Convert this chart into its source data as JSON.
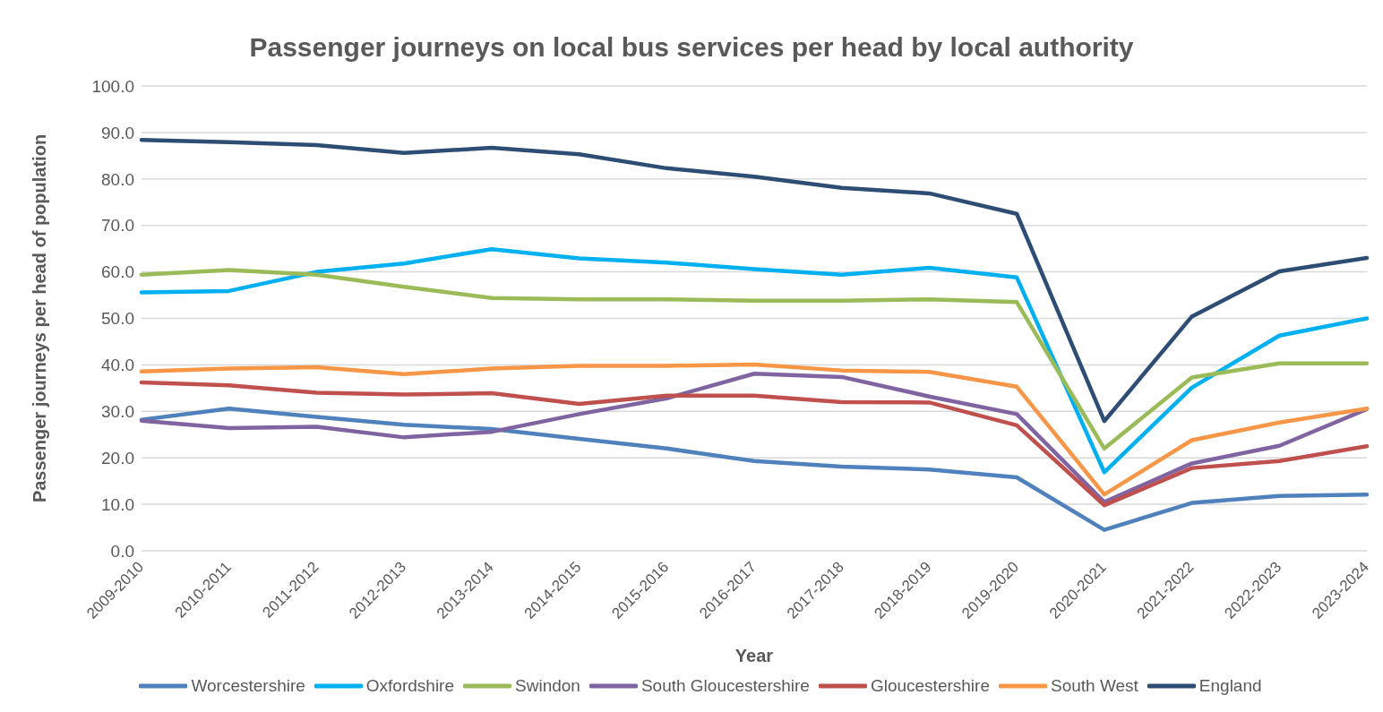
{
  "chart_data": {
    "type": "line",
    "title": "Passenger journeys on local bus services per head by local authority",
    "xlabel": "Year",
    "ylabel": "Passenger journeys per head of population",
    "categories": [
      "2009-2010",
      "2010-2011",
      "2011-2012",
      "2012-2013",
      "2013-2014",
      "2014-2015",
      "2015-2016",
      "2016-2017",
      "2017-2018",
      "2018-2019",
      "2019-2020",
      "2020-2021",
      "2021-2022",
      "2022-2023",
      "2023-2024"
    ],
    "series": [
      {
        "name": "Worcestershire",
        "color": "#4f81bd",
        "values": [
          28.2,
          30.6,
          28.8,
          27.1,
          26.2,
          24.1,
          22.0,
          19.3,
          18.1,
          17.5,
          15.8,
          4.5,
          10.3,
          11.8,
          12.1
        ]
      },
      {
        "name": "Oxfordshire",
        "color": "#00b0f0",
        "values": [
          55.6,
          55.9,
          60.0,
          61.8,
          64.9,
          62.9,
          62.0,
          60.6,
          59.4,
          60.9,
          58.8,
          16.9,
          35.1,
          46.3,
          50.0
        ]
      },
      {
        "name": "Swindon",
        "color": "#9bbb59",
        "values": [
          59.4,
          60.4,
          59.4,
          56.8,
          54.4,
          54.1,
          54.1,
          53.8,
          53.8,
          54.1,
          53.5,
          22.0,
          37.3,
          40.3,
          40.3
        ]
      },
      {
        "name": "South Gloucestershire",
        "color": "#8064a2",
        "values": [
          28.0,
          26.4,
          26.7,
          24.4,
          25.6,
          29.4,
          32.8,
          38.1,
          37.4,
          33.2,
          29.4,
          10.5,
          18.8,
          22.6,
          30.5
        ]
      },
      {
        "name": "Gloucestershire",
        "color": "#c0504d",
        "values": [
          36.2,
          35.6,
          34.0,
          33.6,
          33.9,
          31.6,
          33.4,
          33.4,
          32.0,
          31.9,
          27.0,
          9.8,
          17.8,
          19.3,
          22.5
        ]
      },
      {
        "name": "South West",
        "color": "#f79646",
        "values": [
          38.6,
          39.2,
          39.5,
          38.0,
          39.2,
          39.8,
          39.8,
          40.1,
          38.8,
          38.5,
          35.3,
          12.1,
          23.8,
          27.6,
          30.6
        ]
      },
      {
        "name": "England",
        "color": "#2e4d75",
        "values": [
          88.4,
          87.9,
          87.3,
          85.6,
          86.7,
          85.3,
          82.3,
          80.5,
          78.1,
          76.9,
          72.5,
          27.9,
          50.4,
          60.1,
          63.0
        ]
      }
    ],
    "ylim": [
      0,
      100
    ],
    "yticks": [
      {
        "value": 0,
        "label": "0.0"
      },
      {
        "value": 10,
        "label": "10.0"
      },
      {
        "value": 20,
        "label": "20.0"
      },
      {
        "value": 30,
        "label": "30.0"
      },
      {
        "value": 40,
        "label": "40.0"
      },
      {
        "value": 50,
        "label": "50.0"
      },
      {
        "value": 60,
        "label": "60.0"
      },
      {
        "value": 70,
        "label": "70.0"
      },
      {
        "value": 80,
        "label": "80.0"
      },
      {
        "value": 90,
        "label": "90.0"
      },
      {
        "value": 100,
        "label": "100.0"
      }
    ],
    "grid": "y",
    "legend": "bottom",
    "marker": "none",
    "line_style": "solid"
  }
}
